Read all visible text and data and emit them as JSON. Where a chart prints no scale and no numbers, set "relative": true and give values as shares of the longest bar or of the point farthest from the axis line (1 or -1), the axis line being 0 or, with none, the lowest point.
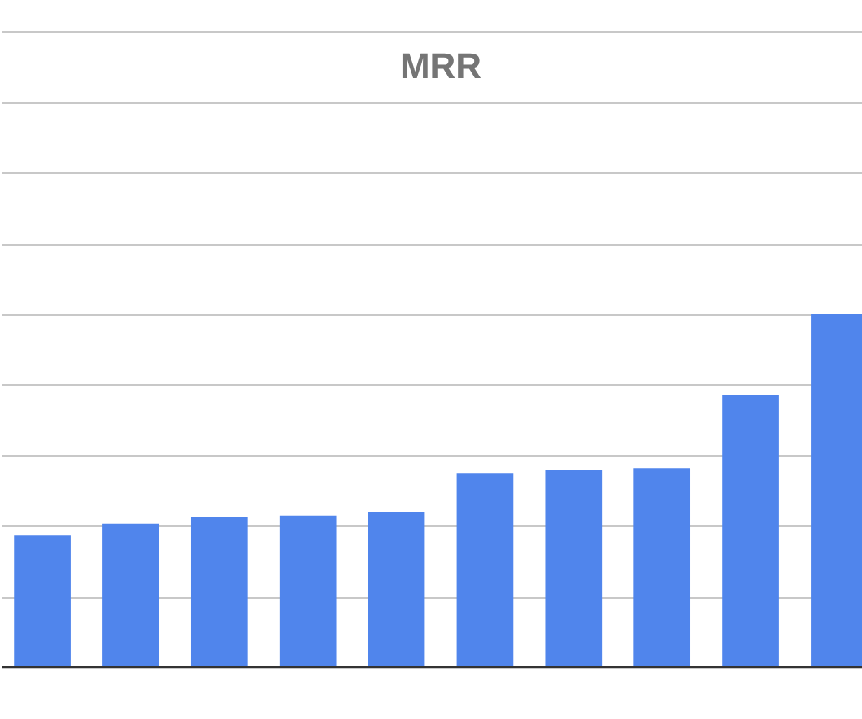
{
  "chart_data": {
    "type": "bar",
    "title": "MRR",
    "relative": true,
    "grid": "y",
    "color": "#5085ec",
    "categories": [
      null,
      null,
      null,
      null,
      null,
      null,
      null,
      null,
      null,
      null
    ],
    "values": [
      0.373,
      0.406,
      0.424,
      0.429,
      0.438,
      0.548,
      0.558,
      0.562,
      0.77,
      1
    ]
  }
}
